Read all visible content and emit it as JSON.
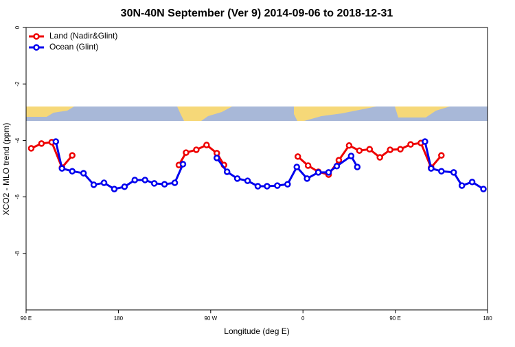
{
  "chart_data": {
    "type": "line",
    "title": "30N-40N September (Ver 9)   2014-09-06 to 2018-12-31",
    "x_label": "Longitude (deg E)",
    "y_label": "XCO2 - MLO trend (ppm)",
    "xlim": [
      90,
      540
    ],
    "xticks": [
      {
        "value": 90,
        "label": "90 E"
      },
      {
        "value": 180,
        "label": "180"
      },
      {
        "value": 270,
        "label": "90 W"
      },
      {
        "value": 360,
        "label": "0"
      },
      {
        "value": 450,
        "label": "90 E"
      },
      {
        "value": 540,
        "label": "180"
      }
    ],
    "ylim": [
      -10,
      0
    ],
    "yticks": [
      0,
      -2,
      -4,
      -6,
      -8
    ],
    "legend": "top-left",
    "series": [
      {
        "name": "Land (Nadir&Glint)",
        "color": "#ee0000",
        "x": [
          95,
          105,
          115,
          125,
          135,
          null,
          239,
          246,
          256,
          266,
          276,
          283,
          null,
          355,
          365,
          375,
          385,
          395,
          405,
          415,
          425,
          435,
          445,
          455,
          465,
          475,
          485,
          495
        ],
        "values": [
          -4.28,
          -4.11,
          -4.06,
          -4.96,
          -4.53,
          null,
          -4.87,
          -4.43,
          -4.33,
          -4.16,
          -4.45,
          -4.87,
          null,
          -4.57,
          -4.89,
          -5.11,
          -5.21,
          -4.7,
          -4.18,
          -4.36,
          -4.31,
          -4.6,
          -4.33,
          -4.31,
          -4.14,
          -4.09,
          -4.96,
          -4.53
        ]
      },
      {
        "name": "Ocean (Glint)",
        "color": "#0000ee",
        "x": [
          119,
          125,
          135,
          146,
          156,
          166,
          176,
          186,
          196,
          206,
          215,
          225,
          235,
          243,
          null,
          276,
          286,
          296,
          306,
          316,
          325,
          335,
          345,
          354,
          364,
          375,
          385,
          393,
          407,
          413,
          null,
          479,
          485,
          495,
          507,
          515,
          525,
          536
        ],
        "values": [
          -4.04,
          -4.99,
          -5.09,
          -5.16,
          -5.57,
          -5.5,
          -5.72,
          -5.64,
          -5.4,
          -5.4,
          -5.52,
          -5.55,
          -5.5,
          -4.84,
          null,
          -4.62,
          -5.11,
          -5.35,
          -5.43,
          -5.62,
          -5.62,
          -5.6,
          -5.55,
          -4.94,
          -5.35,
          -5.13,
          -5.13,
          -4.91,
          -4.55,
          -4.94,
          null,
          -4.04,
          -4.99,
          -5.09,
          -5.13,
          -5.6,
          -5.47,
          -5.72
        ]
      }
    ]
  }
}
